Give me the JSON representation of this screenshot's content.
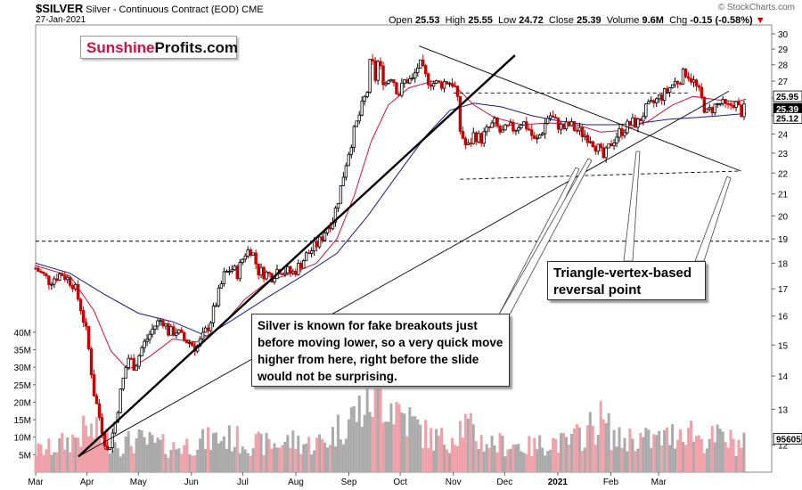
{
  "header": {
    "symbol": "$SILVER",
    "description": "Silver - Continuous Contract (EOD)",
    "exchange": "CME",
    "date": "27-Jan-2021",
    "open_label": "Open",
    "open": "25.53",
    "high_label": "High",
    "high": "25.55",
    "low_label": "Low",
    "low": "24.72",
    "close_label": "Close",
    "close": "25.39",
    "volume_label": "Volume",
    "volume": "9.6M",
    "chg_label": "Chg",
    "chg": "-0.15 (-0.58%)",
    "copyright": "© StockCharts.com"
  },
  "brand": {
    "part1": "Sunshine",
    "part2": "Profits.com"
  },
  "annotations": {
    "callout1": "Silver is known for fake breakouts just before moving lower, so a very quick move higher from here, right before the slide would not be surprising.",
    "callout2": "Triangle-vertex-based reversal point"
  },
  "colors": {
    "up_candle": "#000000",
    "down_candle": "#cc0000",
    "ma_fast": "#d0103a",
    "ma_slow": "#1a1a8c",
    "vol_up": "#aaaaaa",
    "vol_down": "#f0a0a8",
    "trendline": "#000000"
  },
  "chart_data": {
    "type": "candlestick",
    "price_axis": {
      "ticks": [
        12,
        13,
        14,
        15,
        16,
        17,
        18,
        19,
        20,
        21,
        22,
        23,
        24,
        25,
        26,
        27,
        28,
        29,
        30
      ],
      "scale": "log"
    },
    "volume_axis": {
      "tick_labels": [
        "5M",
        "10M",
        "15M",
        "20M",
        "25M",
        "30M",
        "35M",
        "40M"
      ],
      "ticks": [
        5,
        10,
        15,
        20,
        25,
        30,
        35,
        40
      ]
    },
    "x_axis": {
      "tick_labels": [
        "Mar",
        "Apr",
        "May",
        "Jun",
        "Jul",
        "Aug",
        "Sep",
        "Oct",
        "Nov",
        "Dec",
        "2021",
        "Feb",
        "Mar"
      ]
    },
    "last_value_labels": [
      {
        "label": "25.95",
        "value": 25.95,
        "style": "outline"
      },
      {
        "label": "25.39",
        "value": 25.39,
        "style": "filled"
      },
      {
        "label": "25.12",
        "value": 25.12,
        "style": "outline"
      },
      {
        "label": "95605",
        "value": 9.56,
        "style": "volume"
      }
    ],
    "horizontal_level": 18.9,
    "price_path": [
      [
        0,
        17.8
      ],
      [
        8,
        17.3
      ],
      [
        15,
        17.6
      ],
      [
        22,
        17.2
      ],
      [
        26,
        16.4
      ],
      [
        30,
        15.3
      ],
      [
        34,
        13.5
      ],
      [
        38,
        12.6
      ],
      [
        42,
        11.8
      ],
      [
        46,
        12.5
      ],
      [
        50,
        13.6
      ],
      [
        54,
        14.6
      ],
      [
        58,
        14.3
      ],
      [
        62,
        14.9
      ],
      [
        66,
        15.3
      ],
      [
        70,
        15.7
      ],
      [
        74,
        15.9
      ],
      [
        78,
        15.4
      ],
      [
        82,
        15.5
      ],
      [
        86,
        15.2
      ],
      [
        90,
        15.1
      ],
      [
        94,
        14.9
      ],
      [
        98,
        15.3
      ],
      [
        102,
        15.8
      ],
      [
        106,
        16.6
      ],
      [
        110,
        17.5
      ],
      [
        114,
        17.8
      ],
      [
        118,
        17.6
      ],
      [
        122,
        18.4
      ],
      [
        126,
        18.6
      ],
      [
        130,
        17.7
      ],
      [
        134,
        17.6
      ],
      [
        138,
        17.5
      ],
      [
        142,
        17.8
      ],
      [
        146,
        17.7
      ],
      [
        150,
        17.6
      ],
      [
        154,
        17.9
      ],
      [
        158,
        18.3
      ],
      [
        162,
        18.6
      ],
      [
        166,
        18.9
      ],
      [
        170,
        19.5
      ],
      [
        174,
        19.9
      ],
      [
        178,
        21.2
      ],
      [
        182,
        22.8
      ],
      [
        186,
        24.1
      ],
      [
        190,
        25.3
      ],
      [
        194,
        26.5
      ],
      [
        196,
        28.8
      ],
      [
        198,
        26.9
      ],
      [
        200,
        28.2
      ],
      [
        204,
        26.8
      ],
      [
        208,
        27.4
      ],
      [
        212,
        26.2
      ],
      [
        216,
        27.1
      ],
      [
        220,
        27.0
      ],
      [
        224,
        28.1
      ],
      [
        228,
        27.2
      ],
      [
        232,
        26.9
      ],
      [
        236,
        26.8
      ],
      [
        240,
        27.0
      ],
      [
        244,
        26.9
      ],
      [
        246,
        26.2
      ],
      [
        248,
        24.2
      ],
      [
        252,
        23.2
      ],
      [
        256,
        24.0
      ],
      [
        260,
        23.7
      ],
      [
        264,
        24.2
      ],
      [
        268,
        24.6
      ],
      [
        272,
        24.0
      ],
      [
        276,
        24.3
      ],
      [
        280,
        24.3
      ],
      [
        284,
        24.7
      ],
      [
        288,
        24.3
      ],
      [
        292,
        23.5
      ],
      [
        296,
        24.2
      ],
      [
        300,
        25.1
      ],
      [
        304,
        24.6
      ],
      [
        308,
        24.3
      ],
      [
        312,
        24.5
      ],
      [
        316,
        24.2
      ],
      [
        320,
        24.0
      ],
      [
        324,
        23.8
      ],
      [
        328,
        23.3
      ],
      [
        332,
        22.7
      ],
      [
        336,
        23.5
      ],
      [
        340,
        24.0
      ],
      [
        344,
        24.3
      ],
      [
        348,
        24.6
      ],
      [
        352,
        24.6
      ],
      [
        356,
        25.3
      ],
      [
        360,
        25.6
      ],
      [
        364,
        26.0
      ],
      [
        368,
        26.3
      ],
      [
        372,
        26.8
      ],
      [
        376,
        27.1
      ],
      [
        380,
        27.6
      ],
      [
        384,
        27.0
      ],
      [
        388,
        26.2
      ],
      [
        392,
        25.1
      ],
      [
        396,
        25.5
      ],
      [
        400,
        25.7
      ],
      [
        404,
        25.4
      ],
      [
        408,
        25.8
      ],
      [
        412,
        25.2
      ],
      [
        415,
        25.39
      ]
    ],
    "ma_fast_path": [
      [
        0,
        17.9
      ],
      [
        20,
        17.5
      ],
      [
        34,
        16.2
      ],
      [
        44,
        14.8
      ],
      [
        54,
        14.2
      ],
      [
        66,
        14.6
      ],
      [
        80,
        15.2
      ],
      [
        94,
        15.1
      ],
      [
        108,
        15.6
      ],
      [
        122,
        16.6
      ],
      [
        136,
        17.3
      ],
      [
        150,
        17.6
      ],
      [
        164,
        18.0
      ],
      [
        176,
        19.0
      ],
      [
        186,
        20.9
      ],
      [
        196,
        23.6
      ],
      [
        206,
        25.6
      ],
      [
        218,
        26.6
      ],
      [
        232,
        27.0
      ],
      [
        244,
        26.8
      ],
      [
        256,
        25.6
      ],
      [
        268,
        24.9
      ],
      [
        284,
        24.5
      ],
      [
        300,
        24.6
      ],
      [
        316,
        24.5
      ],
      [
        330,
        24.1
      ],
      [
        344,
        24.2
      ],
      [
        358,
        24.7
      ],
      [
        372,
        25.6
      ],
      [
        384,
        26.1
      ],
      [
        398,
        25.9
      ],
      [
        410,
        25.8
      ],
      [
        415,
        25.95
      ]
    ],
    "ma_slow_path": [
      [
        0,
        18.0
      ],
      [
        20,
        17.6
      ],
      [
        40,
        16.8
      ],
      [
        60,
        16.1
      ],
      [
        80,
        15.8
      ],
      [
        100,
        15.3
      ],
      [
        116,
        15.9
      ],
      [
        136,
        16.7
      ],
      [
        156,
        17.5
      ],
      [
        176,
        18.4
      ],
      [
        194,
        20.0
      ],
      [
        212,
        22.0
      ],
      [
        228,
        23.9
      ],
      [
        242,
        25.3
      ],
      [
        256,
        25.7
      ],
      [
        272,
        25.5
      ],
      [
        290,
        25.0
      ],
      [
        306,
        24.7
      ],
      [
        322,
        24.5
      ],
      [
        338,
        24.5
      ],
      [
        354,
        24.6
      ],
      [
        370,
        24.8
      ],
      [
        386,
        24.9
      ],
      [
        400,
        25.0
      ],
      [
        415,
        25.12
      ]
    ],
    "trendlines": [
      {
        "from": [
          25,
          11.7
        ],
        "to": [
          280,
          28.6
        ],
        "style": "thick"
      },
      {
        "from": [
          25,
          11.7
        ],
        "to": [
          405,
          26.4
        ],
        "style": "thin"
      },
      {
        "from": [
          224,
          29.2
        ],
        "to": [
          412,
          22.1
        ],
        "style": "thin"
      },
      {
        "from": [
          248,
          21.7
        ],
        "to": [
          412,
          22.1
        ],
        "style": "dashed"
      },
      {
        "from": [
          244,
          26.3
        ],
        "to": [
          382,
          26.3
        ],
        "style": "dashed"
      }
    ],
    "volume_path": [
      [
        0,
        6
      ],
      [
        10,
        7
      ],
      [
        20,
        9
      ],
      [
        30,
        12
      ],
      [
        40,
        10
      ],
      [
        50,
        8
      ],
      [
        60,
        9
      ],
      [
        70,
        8
      ],
      [
        80,
        7
      ],
      [
        90,
        8
      ],
      [
        100,
        9
      ],
      [
        110,
        10
      ],
      [
        120,
        9
      ],
      [
        130,
        8
      ],
      [
        140,
        8
      ],
      [
        150,
        9
      ],
      [
        160,
        8
      ],
      [
        170,
        9
      ],
      [
        180,
        14
      ],
      [
        190,
        18
      ],
      [
        200,
        23
      ],
      [
        210,
        19
      ],
      [
        220,
        14
      ],
      [
        230,
        10
      ],
      [
        240,
        9
      ],
      [
        250,
        14
      ],
      [
        260,
        9
      ],
      [
        270,
        8
      ],
      [
        280,
        8
      ],
      [
        290,
        7
      ],
      [
        300,
        9
      ],
      [
        310,
        8
      ],
      [
        320,
        11
      ],
      [
        330,
        15
      ],
      [
        340,
        9
      ],
      [
        350,
        10
      ],
      [
        360,
        9
      ],
      [
        370,
        10
      ],
      [
        380,
        13
      ],
      [
        390,
        9
      ],
      [
        400,
        10
      ],
      [
        410,
        8
      ],
      [
        415,
        9.6
      ]
    ]
  }
}
